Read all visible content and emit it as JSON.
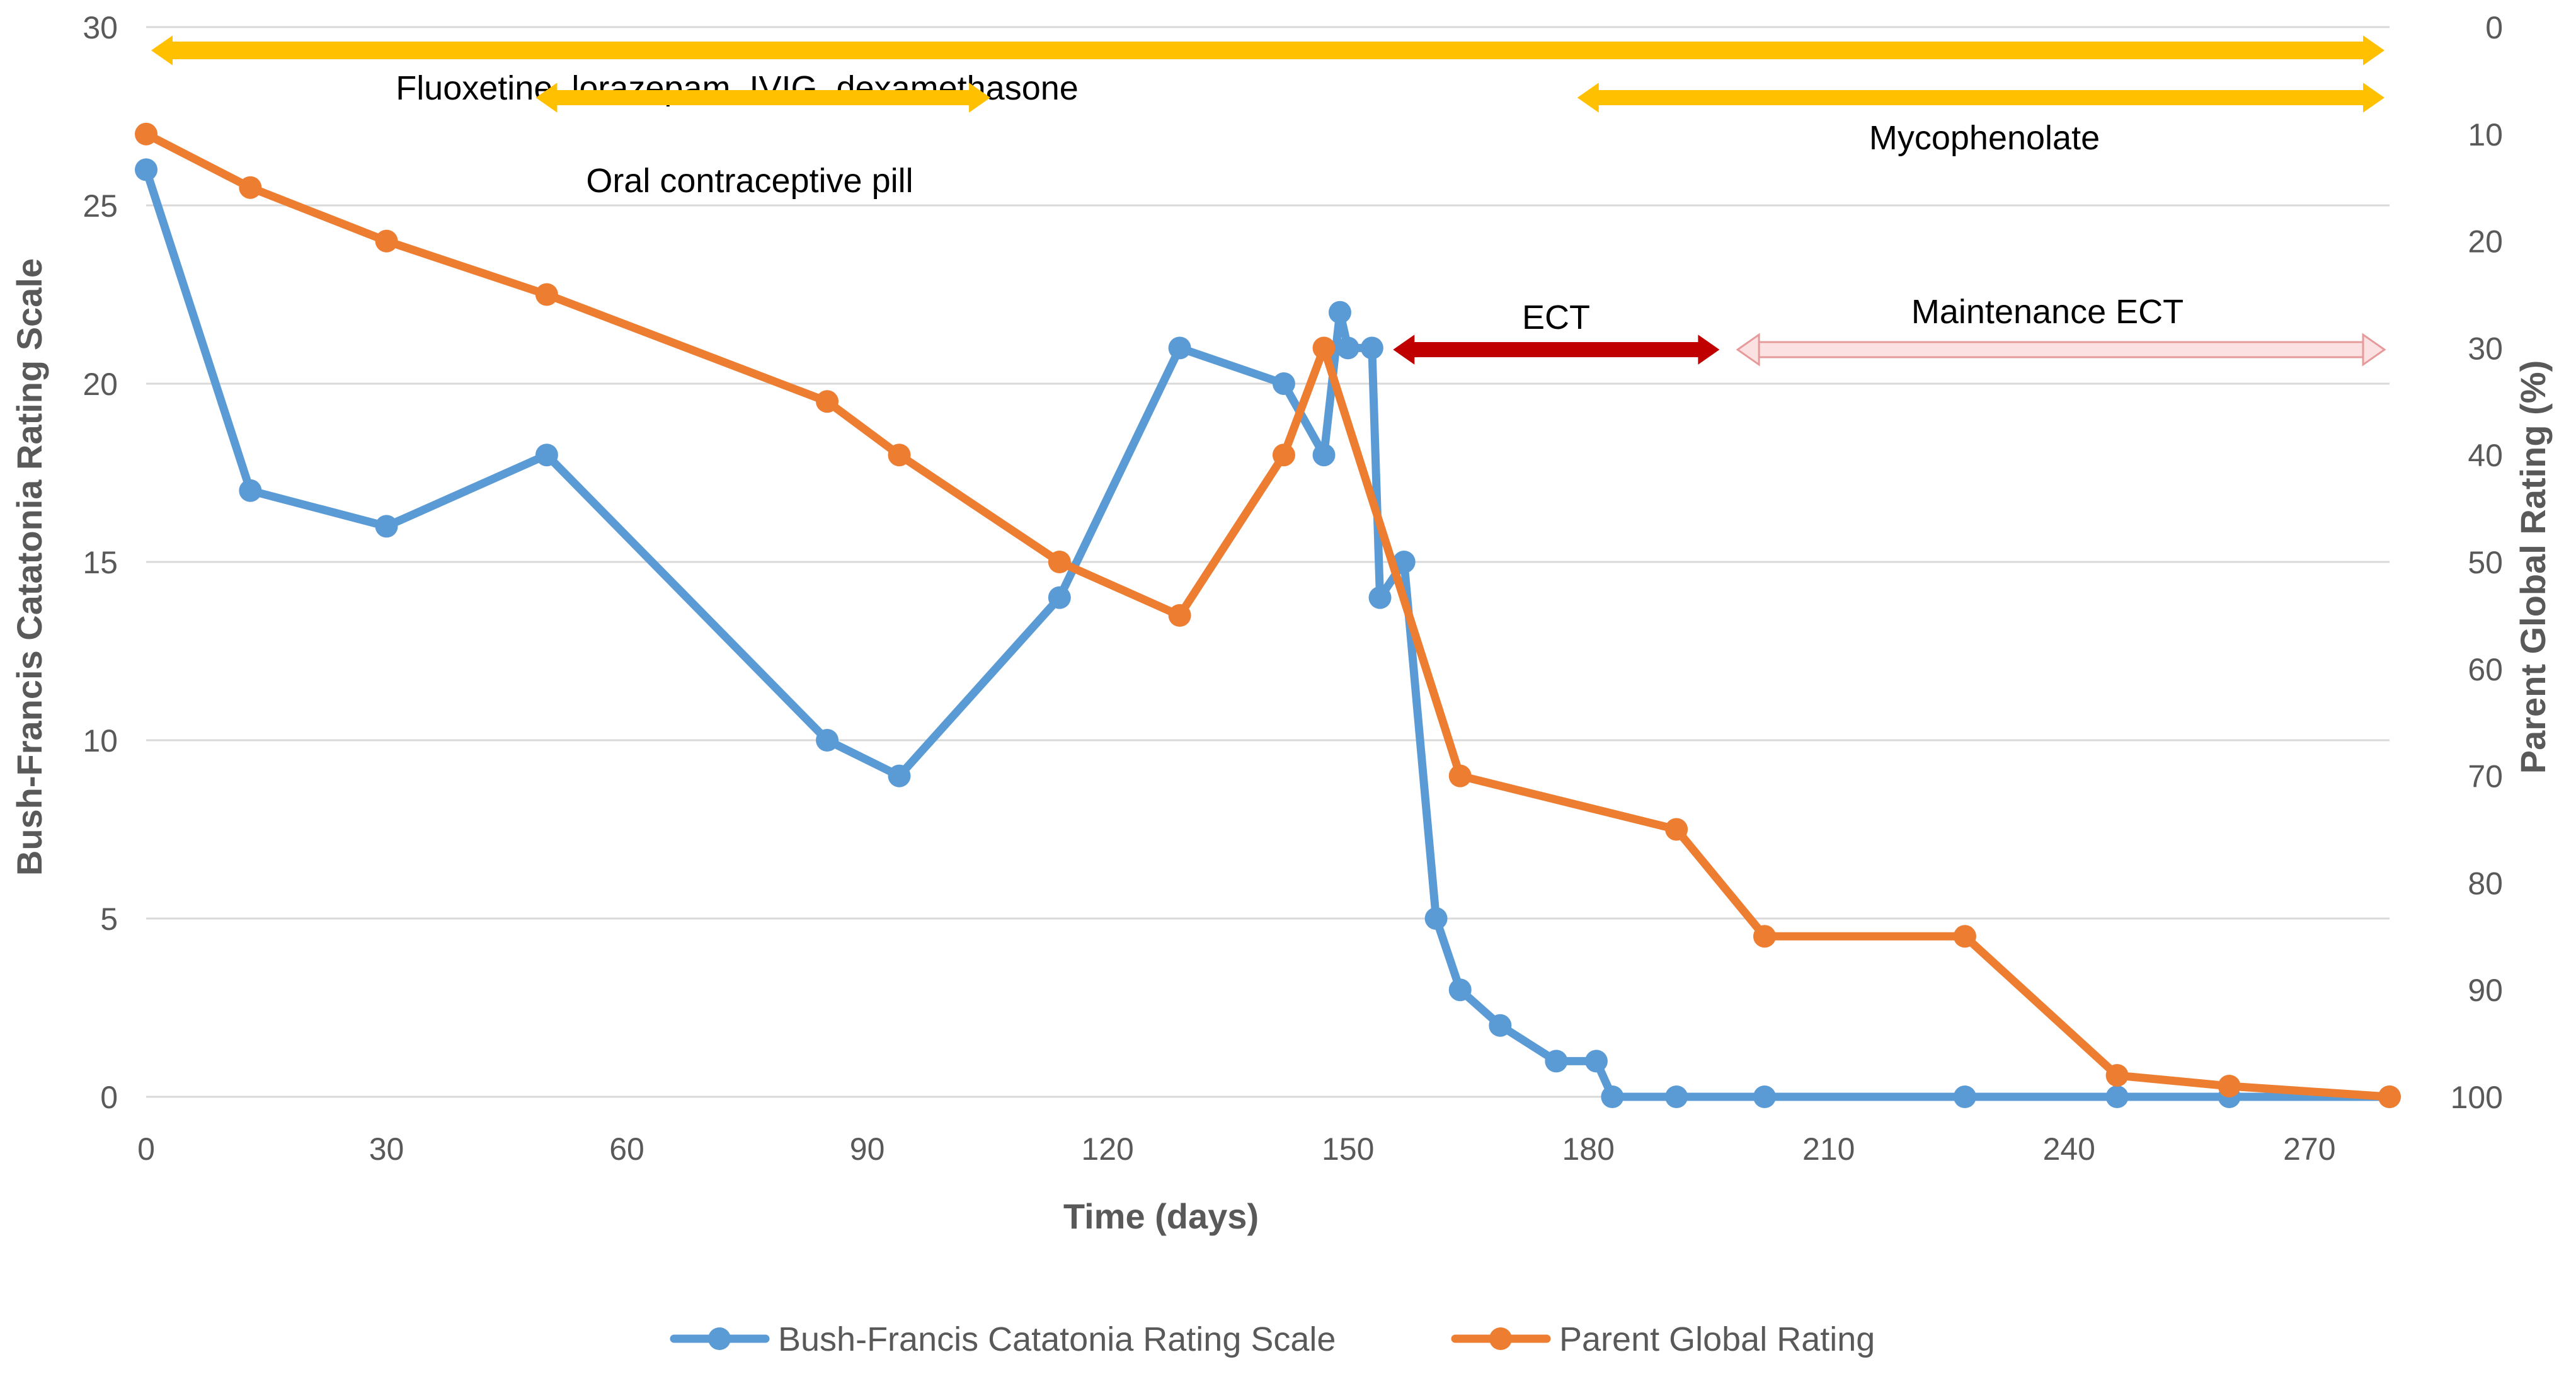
{
  "chart_data": {
    "type": "line",
    "xlabel": "Time (days)",
    "ylabel_left": "Bush-Francis Catatonia Rating Scale",
    "ylabel_right": "Parent Global Rating (%)",
    "xlim": [
      0,
      280
    ],
    "ylim_left": [
      0,
      30
    ],
    "ylim_right": [
      100,
      0
    ],
    "right_axis_inverted": true,
    "x_ticks": [
      0,
      30,
      60,
      90,
      120,
      150,
      180,
      210,
      240,
      270
    ],
    "y_left_ticks": [
      0,
      5,
      10,
      15,
      20,
      25,
      30
    ],
    "y_right_ticks": [
      0,
      10,
      20,
      30,
      40,
      50,
      60,
      70,
      80,
      90,
      100
    ],
    "grid": "horizontal",
    "legend_position": "bottom",
    "series": [
      {
        "name": "Bush-Francis Catatonia Rating Scale",
        "axis": "left",
        "color": "#5b9bd5",
        "points": [
          [
            0,
            26
          ],
          [
            13,
            17
          ],
          [
            30,
            16
          ],
          [
            50,
            18
          ],
          [
            85,
            10
          ],
          [
            94,
            9
          ],
          [
            114,
            14
          ],
          [
            129,
            21
          ],
          [
            142,
            20
          ],
          [
            147,
            18
          ],
          [
            149,
            22
          ],
          [
            150,
            21
          ],
          [
            153,
            21
          ],
          [
            154,
            14
          ],
          [
            157,
            15
          ],
          [
            161,
            5
          ],
          [
            164,
            3
          ],
          [
            169,
            2
          ],
          [
            176,
            1
          ],
          [
            181,
            1
          ],
          [
            183,
            0
          ],
          [
            191,
            0
          ],
          [
            202,
            0
          ],
          [
            227,
            0
          ],
          [
            246,
            0
          ],
          [
            260,
            0
          ],
          [
            280,
            0
          ]
        ]
      },
      {
        "name": "Parent Global Rating",
        "axis": "right",
        "color": "#ed7d31",
        "points": [
          [
            0,
            10
          ],
          [
            13,
            15
          ],
          [
            30,
            20
          ],
          [
            50,
            25
          ],
          [
            85,
            35
          ],
          [
            94,
            40
          ],
          [
            114,
            50
          ],
          [
            129,
            55
          ],
          [
            142,
            40
          ],
          [
            147,
            30
          ],
          [
            164,
            70
          ],
          [
            191,
            75
          ],
          [
            202,
            85
          ],
          [
            227,
            85
          ],
          [
            246,
            98
          ],
          [
            260,
            99
          ],
          [
            280,
            100
          ]
        ]
      }
    ],
    "annotations": [
      {
        "label": "Fluoxetine, lorazepam, IVIG, dexamethasone",
        "x_start": 0,
        "x_end": 280,
        "color": "#ffc000",
        "style": "double-arrow"
      },
      {
        "label": "Oral contraceptive pill",
        "x_start": 48,
        "x_end": 106,
        "color": "#ffc000",
        "style": "double-arrow"
      },
      {
        "label": "Mycophenolate",
        "x_start": 178,
        "x_end": 280,
        "color": "#ffc000",
        "style": "double-arrow"
      },
      {
        "label": "ECT",
        "x_start": 155,
        "x_end": 197,
        "color": "#c00000",
        "style": "double-arrow"
      },
      {
        "label": "Maintenance ECT",
        "x_start": 198,
        "x_end": 280,
        "color": "#f4b8b8",
        "style": "double-arrow-outline"
      }
    ]
  }
}
